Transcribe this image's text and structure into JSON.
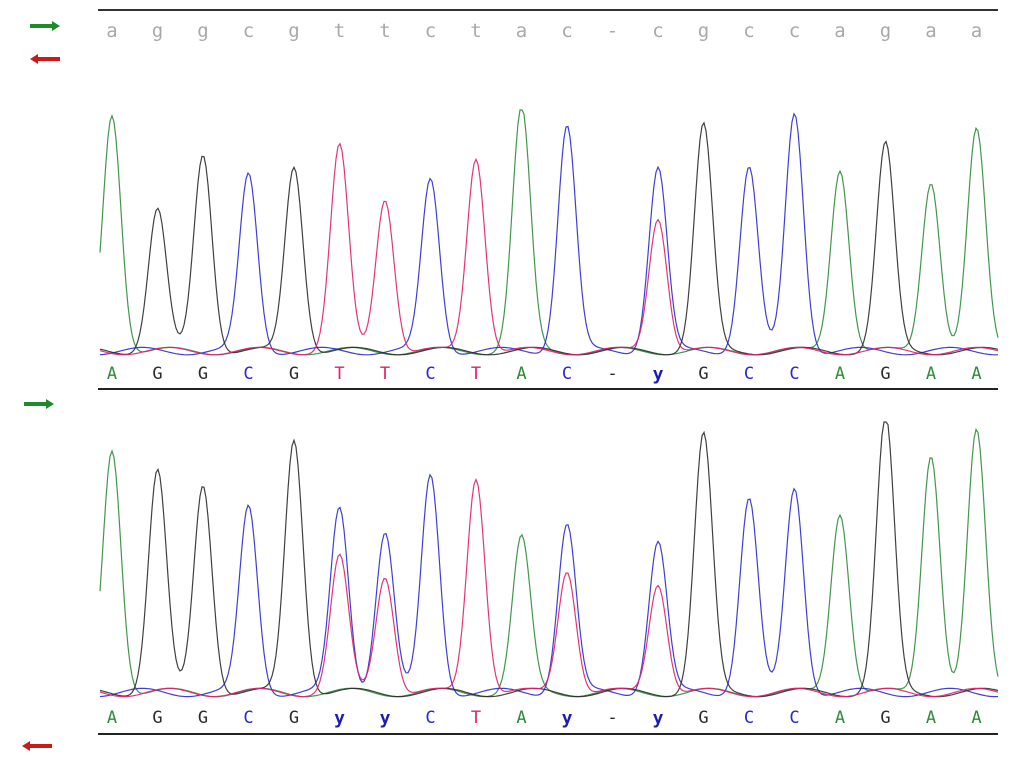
{
  "consensus": {
    "bases": [
      "a",
      "g",
      "g",
      "c",
      "g",
      "t",
      "t",
      "c",
      "t",
      "a",
      "c",
      "-",
      "c",
      "g",
      "c",
      "c",
      "a",
      "g",
      "a",
      "a"
    ]
  },
  "tracks": [
    {
      "name": "forward-read",
      "direction": "forward",
      "calls": [
        "A",
        "G",
        "G",
        "C",
        "G",
        "T",
        "T",
        "C",
        "T",
        "A",
        "C",
        "-",
        "y",
        "G",
        "C",
        "C",
        "A",
        "G",
        "A",
        "A"
      ]
    },
    {
      "name": "reverse-read",
      "direction": "reverse",
      "calls": [
        "A",
        "G",
        "G",
        "C",
        "G",
        "y",
        "y",
        "C",
        "T",
        "A",
        "y",
        "-",
        "y",
        "G",
        "C",
        "C",
        "A",
        "G",
        "A",
        "A"
      ]
    }
  ],
  "colors": {
    "A": "#2e8b3a",
    "C": "#2a2ad0",
    "G": "#2b2b2b",
    "T": "#e0206a",
    "ambiguous": "#1c1cb0",
    "gap": "#222222",
    "consensus": "#a9a9a9",
    "arrow_forward": "#1f8a2a",
    "arrow_reverse": "#cc1a1a"
  },
  "icons": {
    "forward": "right-arrow-icon",
    "reverse": "left-arrow-icon"
  }
}
